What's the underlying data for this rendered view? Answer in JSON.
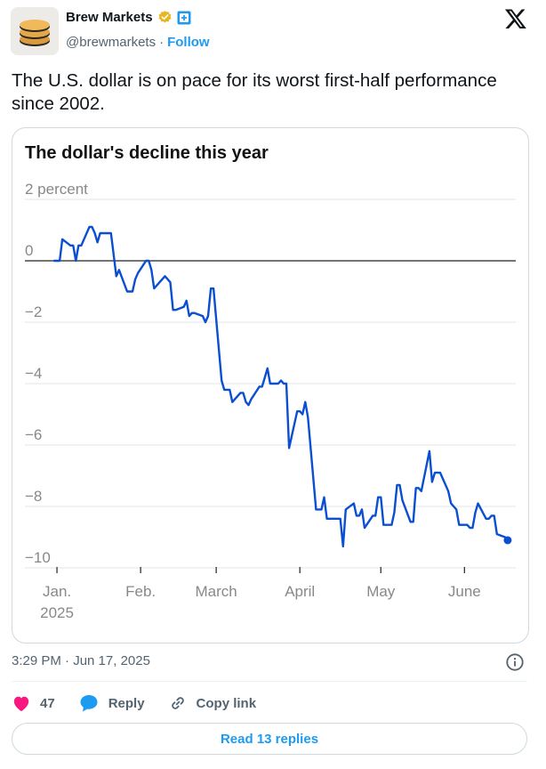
{
  "account": {
    "display_name": "Brew Markets",
    "handle": "@brewmarkets",
    "separator": "·",
    "follow_label": "Follow",
    "avatar_icon": "coin-stack-icon",
    "verified_icon": "gold-verified-badge-icon",
    "affiliate_icon": "affiliate-badge-icon"
  },
  "post": {
    "text": "The U.S. dollar is on pace for its worst first-half performance since 2002.",
    "timestamp": "3:29 PM · Jun 17, 2025"
  },
  "chart_data": {
    "type": "line",
    "title": "The dollar's decline this year",
    "y_unit_label": "percent",
    "ylim": [
      -10.5,
      2
    ],
    "y_ticks": [
      {
        "value": 2,
        "label": "2"
      },
      {
        "value": 0,
        "label": "0"
      },
      {
        "value": -2,
        "label": "−2"
      },
      {
        "value": -4,
        "label": "−4"
      },
      {
        "value": -6,
        "label": "−6"
      },
      {
        "value": -8,
        "label": "−8"
      },
      {
        "value": -10,
        "label": "−10"
      }
    ],
    "x_ticks": [
      {
        "date": "2025-01-01",
        "label": "Jan.",
        "sublabel": "2025"
      },
      {
        "date": "2025-02-01",
        "label": "Feb."
      },
      {
        "date": "2025-03-01",
        "label": "March"
      },
      {
        "date": "2025-04-01",
        "label": "April"
      },
      {
        "date": "2025-05-01",
        "label": "May"
      },
      {
        "date": "2025-06-01",
        "label": "June"
      }
    ],
    "xlim": [
      "2024-12-30",
      "2025-06-20"
    ],
    "grid": true,
    "zero_line": true,
    "line_color": "#0b4fd1",
    "series": [
      {
        "x": [
          "2024-12-31",
          "2025-01-02",
          "2025-01-03",
          "2025-01-06",
          "2025-01-07",
          "2025-01-08",
          "2025-01-09",
          "2025-01-10",
          "2025-01-13",
          "2025-01-14",
          "2025-01-15",
          "2025-01-16",
          "2025-01-17",
          "2025-01-20",
          "2025-01-21",
          "2025-01-22",
          "2025-01-23",
          "2025-01-24",
          "2025-01-27",
          "2025-01-28",
          "2025-01-29",
          "2025-01-30",
          "2025-01-31",
          "2025-02-03",
          "2025-02-04",
          "2025-02-05",
          "2025-02-06",
          "2025-02-07",
          "2025-02-10",
          "2025-02-11",
          "2025-02-12",
          "2025-02-13",
          "2025-02-14",
          "2025-02-17",
          "2025-02-18",
          "2025-02-19",
          "2025-02-20",
          "2025-02-21",
          "2025-02-24",
          "2025-02-25",
          "2025-02-26",
          "2025-02-27",
          "2025-02-28",
          "2025-03-03",
          "2025-03-04",
          "2025-03-05",
          "2025-03-06",
          "2025-03-07",
          "2025-03-10",
          "2025-03-11",
          "2025-03-12",
          "2025-03-13",
          "2025-03-14",
          "2025-03-17",
          "2025-03-18",
          "2025-03-19",
          "2025-03-20",
          "2025-03-21",
          "2025-03-24",
          "2025-03-25",
          "2025-03-26",
          "2025-03-27",
          "2025-03-28",
          "2025-03-31",
          "2025-04-01",
          "2025-04-02",
          "2025-04-03",
          "2025-04-04",
          "2025-04-07",
          "2025-04-08",
          "2025-04-09",
          "2025-04-10",
          "2025-04-11",
          "2025-04-14",
          "2025-04-15",
          "2025-04-16",
          "2025-04-17",
          "2025-04-18",
          "2025-04-21",
          "2025-04-22",
          "2025-04-23",
          "2025-04-24",
          "2025-04-25",
          "2025-04-28",
          "2025-04-29",
          "2025-04-30",
          "2025-05-01",
          "2025-05-02",
          "2025-05-05",
          "2025-05-06",
          "2025-05-07",
          "2025-05-08",
          "2025-05-09",
          "2025-05-12",
          "2025-05-13",
          "2025-05-14",
          "2025-05-15",
          "2025-05-16",
          "2025-05-19",
          "2025-05-20",
          "2025-05-21",
          "2025-05-22",
          "2025-05-23",
          "2025-05-26",
          "2025-05-27",
          "2025-05-28",
          "2025-05-29",
          "2025-05-30",
          "2025-06-02",
          "2025-06-03",
          "2025-06-04",
          "2025-06-05",
          "2025-06-06",
          "2025-06-09",
          "2025-06-10",
          "2025-06-11",
          "2025-06-12",
          "2025-06-13",
          "2025-06-16",
          "2025-06-17"
        ],
        "values": [
          0,
          0,
          0.7,
          0.5,
          0.5,
          0,
          0.5,
          0.5,
          1.1,
          1.1,
          0.9,
          0.6,
          0.9,
          0.9,
          0.9,
          0.2,
          -0.5,
          -0.3,
          -1,
          -1,
          -1,
          -0.6,
          -0.4,
          0.0,
          0.0,
          -0.3,
          -0.9,
          -0.8,
          -0.5,
          -0.6,
          -0.7,
          -1.6,
          -1.6,
          -1.5,
          -1.3,
          -1.8,
          -1.7,
          -1.7,
          -1.8,
          -2.0,
          -1.8,
          -0.9,
          -0.9,
          -3.9,
          -4.2,
          -4.2,
          -4.2,
          -4.6,
          -4.3,
          -4.3,
          -4.6,
          -4.7,
          -4.5,
          -4.1,
          -4.1,
          -3.8,
          -3.5,
          -4.0,
          -4.0,
          -3.9,
          -4.0,
          -4.0,
          -6.1,
          -4.9,
          -4.9,
          -5.0,
          -4.6,
          -5.1,
          -8.1,
          -8.1,
          -8.1,
          -7.7,
          -8.4,
          -8.4,
          -8.4,
          -8.4,
          -9.3,
          -8.1,
          -7.9,
          -8.3,
          -8.3,
          -8.1,
          -8.7,
          -8.3,
          -8.3,
          -7.7,
          -7.7,
          -8.6,
          -8.6,
          -8.2,
          -7.3,
          -7.3,
          -7.8,
          -8.5,
          -8.5,
          -7.4,
          -7.4,
          -7.5,
          -6.2,
          -7.2,
          -6.9,
          -6.9,
          -6.9,
          -7.5,
          -7.9,
          -8.0,
          -8.1,
          -8.6,
          -8.6,
          -8.7,
          -8.7,
          -8.2,
          -7.9,
          -8.4,
          -8.4,
          -8.3,
          -8.3,
          -8.9,
          -9.0,
          -9.1
        ]
      }
    ]
  },
  "engagement": {
    "like_count": "47",
    "reply_label": "Reply",
    "copy_link_label": "Copy link",
    "read_replies_label": "Read 13 replies",
    "like_color": "#f91880",
    "reply_color": "#1d9bf0"
  }
}
